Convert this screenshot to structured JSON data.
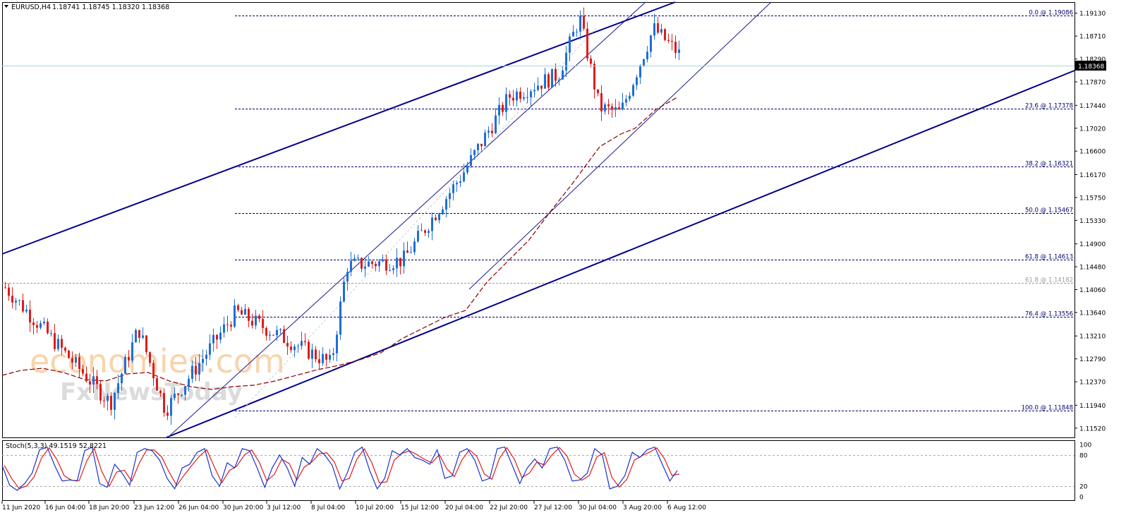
{
  "header": {
    "symbol": "EURUSD,H4",
    "ohlc": "1.18741 1.18745 1.18320 1.18368"
  },
  "watermark": {
    "brand": "economies.com",
    "sub": "FxNewsToday"
  },
  "colors": {
    "background": "#ffffff",
    "bull": "#1f6ed6",
    "bear": "#e01b1b",
    "trendline": "#00008b",
    "fib": "#00006e",
    "current_price_line": "#9ad7e6",
    "ma": "#8b0000",
    "stoch_main": "#1a33cc",
    "stoch_signal": "#e01b1b"
  },
  "chart_data": [
    {
      "type": "candlestick",
      "title": "EURUSD,H4",
      "ylim": [
        1.1135,
        1.1932
      ],
      "y_ticks": [
        "1.19130",
        "1.18710",
        "1.18290",
        "1.17870",
        "1.17440",
        "1.17020",
        "1.16600",
        "1.16170",
        "1.15750",
        "1.15330",
        "1.14900",
        "1.14480",
        "1.14060",
        "1.13640",
        "1.13210",
        "1.12790",
        "1.12370",
        "1.11940",
        "1.11520"
      ],
      "x_ticks": [
        "11 Jun 2020",
        "16 Jun 04:00",
        "18 Jun 20:00",
        "23 Jun 12:00",
        "26 Jun 04:00",
        "30 Jun 20:00",
        "3 Jul 12:00",
        "8 Jul 04:00",
        "10 Jul 20:00",
        "15 Jul 12:00",
        "20 Jul 04:00",
        "22 Jul 20:00",
        "27 Jul 12:00",
        "30 Jul 04:00",
        "3 Aug 20:00",
        "6 Aug 12:00"
      ],
      "current_price": {
        "value": 1.18368,
        "label": "1.18368"
      },
      "fib_levels": [
        {
          "label": "0.0 @ 1.19086",
          "value": 1.19086
        },
        {
          "label": "23.6 @ 1.17378",
          "value": 1.17378
        },
        {
          "label": "38.2 @ 1.16321",
          "value": 1.16321
        },
        {
          "label": "50.0 @ 1.15467",
          "value": 1.15467
        },
        {
          "label": "61.8 @ 1.14613",
          "value": 1.14613
        },
        {
          "label": "76.4 @ 1.13556",
          "value": 1.13556
        },
        {
          "label": "100.0 @ 1.11848",
          "value": 1.11848
        }
      ],
      "other_levels": [
        {
          "label": "61.8 @ 1.14182",
          "value": 1.14182
        }
      ],
      "anchors": [
        {
          "x": "11 Jun 2020",
          "price": 1.141
        },
        {
          "x": "18 Jun 20:00",
          "price": 1.1198
        },
        {
          "x": "23 Jun 12:00",
          "price": 1.1335
        },
        {
          "x": "30 Jun 20:00",
          "price": 1.1185
        },
        {
          "x": "8 Jul 04:00",
          "price": 1.1365
        },
        {
          "x": "10 Jul 20:00",
          "price": 1.127
        },
        {
          "x": "15 Jul 12:00",
          "price": 1.145
        },
        {
          "x": "20 Jul 04:00",
          "price": 1.146
        },
        {
          "x": "22 Jul 20:00",
          "price": 1.162
        },
        {
          "x": "27 Jul 12:00",
          "price": 1.176
        },
        {
          "x": "30 Jul 04:00",
          "price": 1.18
        },
        {
          "x": "31 Jul",
          "price": 1.1905
        },
        {
          "x": "3 Aug 20:00",
          "price": 1.174
        },
        {
          "x": "4 Aug",
          "price": 1.173
        },
        {
          "x": "5 Aug",
          "price": 1.1885
        },
        {
          "x": "6 Aug 12:00",
          "price": 1.1837
        }
      ]
    },
    {
      "type": "line",
      "title": "Stoch(5,3,3) 49.1519 52.8221",
      "ylim": [
        0,
        100
      ],
      "y_ticks": [
        "100",
        "80",
        "20",
        "0"
      ],
      "levels": [
        80,
        20
      ],
      "series": [
        {
          "values": [
            60,
            22,
            12,
            25,
            45,
            90,
            95,
            60,
            30,
            32,
            30,
            88,
            95,
            25,
            18,
            62,
            45,
            22,
            85,
            92,
            88,
            70,
            35,
            15,
            55,
            62,
            85,
            92,
            40,
            20,
            65,
            55,
            92,
            88,
            55,
            18,
            55,
            80,
            55,
            20,
            75,
            62,
            92,
            80,
            60,
            15,
            45,
            85,
            95,
            50,
            15,
            35,
            88,
            80,
            92,
            75,
            70,
            62,
            90,
            35,
            40,
            85,
            92,
            70,
            30,
            35,
            92,
            95,
            60,
            25,
            55,
            72,
            55,
            92,
            95,
            70,
            30,
            32,
            45,
            92,
            80,
            15,
            20,
            40,
            85,
            75,
            90,
            95,
            62,
            30,
            50
          ]
        }
      ]
    }
  ]
}
